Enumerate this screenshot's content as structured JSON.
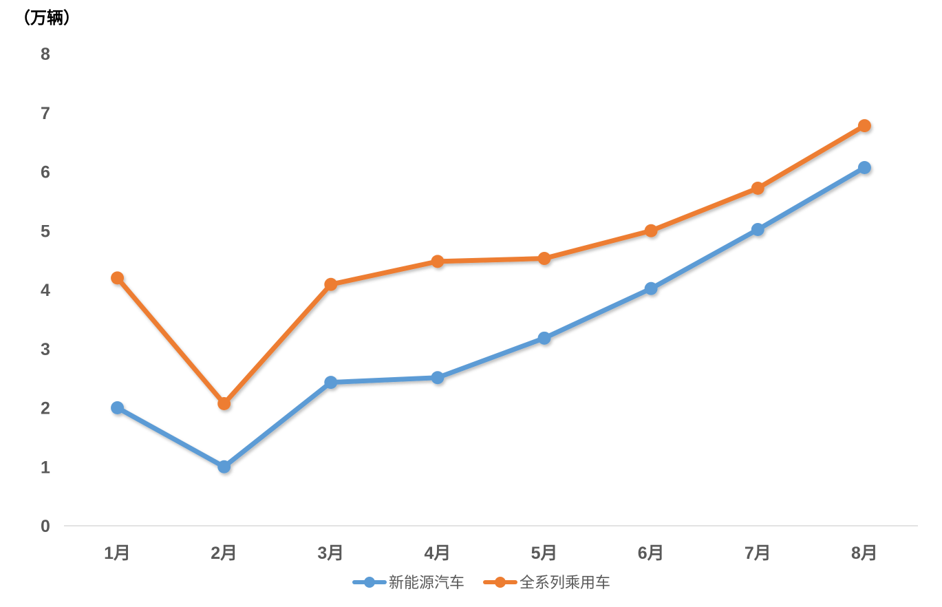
{
  "chart_data": {
    "type": "line",
    "ylabel": "（万辆）",
    "categories": [
      "1月",
      "2月",
      "3月",
      "4月",
      "5月",
      "6月",
      "7月",
      "8月"
    ],
    "ylim": [
      0,
      8
    ],
    "yticks": [
      "0",
      "1",
      "2",
      "3",
      "4",
      "5",
      "6",
      "7",
      "8"
    ],
    "grid": false,
    "legend_position": "bottom",
    "series": [
      {
        "name": "新能源汽车",
        "color": "#5B9BD5",
        "values": [
          2.0,
          1.0,
          2.43,
          2.51,
          3.18,
          4.02,
          5.02,
          6.07
        ]
      },
      {
        "name": "全系列乘用车",
        "color": "#ED7D31",
        "values": [
          4.2,
          2.07,
          4.09,
          4.48,
          4.53,
          5.0,
          5.72,
          6.78
        ]
      }
    ]
  }
}
